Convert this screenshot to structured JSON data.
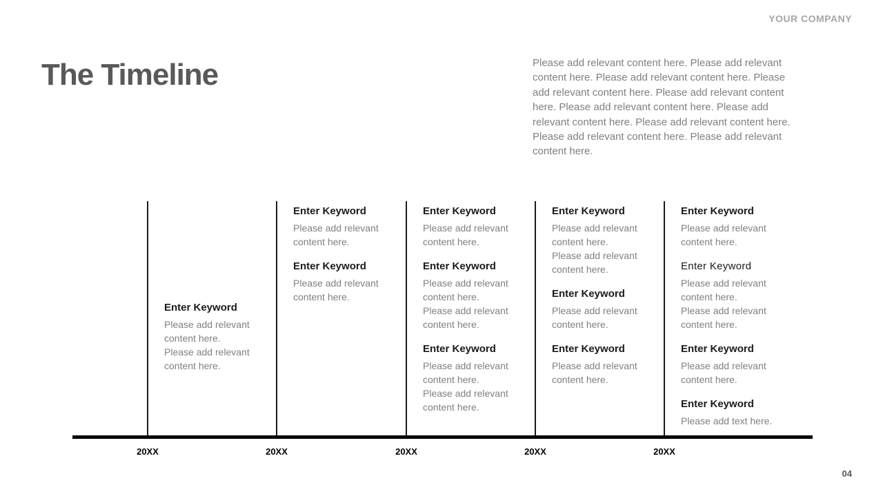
{
  "header": {
    "company": "YOUR COMPANY",
    "title": "The Timeline",
    "intro": "Please add relevant content here. Please add relevant content here. Please add relevant content here. Please add relevant content here. Please add relevant content here. Please add relevant content here. Please add relevant content here. Please add relevant content here. Please add relevant content here. Please add relevant content here."
  },
  "timeline": {
    "columns": [
      {
        "year": "20XX",
        "entries": [
          {
            "title": "Enter Keyword",
            "lines": [
              "Please add relevant content here.",
              "Please add relevant content here."
            ]
          }
        ]
      },
      {
        "year": "20XX",
        "entries": [
          {
            "title": "Enter Keyword",
            "lines": [
              "Please add relevant content here."
            ]
          },
          {
            "title": "Enter Keyword",
            "lines": [
              "Please add relevant content here."
            ]
          }
        ]
      },
      {
        "year": "20XX",
        "entries": [
          {
            "title": "Enter Keyword",
            "lines": [
              "Please add relevant content here."
            ]
          },
          {
            "title": "Enter Keyword",
            "lines": [
              "Please add relevant content here.",
              "Please add relevant content here."
            ]
          },
          {
            "title": "Enter Keyword",
            "lines": [
              "Please add relevant content here.",
              "Please add relevant content here."
            ]
          }
        ]
      },
      {
        "year": "20XX",
        "entries": [
          {
            "title": "Enter Keyword",
            "lines": [
              "Please add relevant content here.",
              "Please add relevant content here."
            ]
          },
          {
            "title": "Enter Keyword",
            "lines": [
              "Please add relevant content here."
            ]
          },
          {
            "title": "Enter Keyword",
            "lines": [
              "Please add relevant content here."
            ]
          }
        ]
      },
      {
        "year": "20XX",
        "entries": [
          {
            "title": "Enter Keyword",
            "lines": [
              "Please add relevant content here."
            ]
          },
          {
            "title": "Enter Keyword",
            "lines": [
              "Please add relevant content here.",
              "Please add relevant content here."
            ]
          },
          {
            "title": "Enter Keyword",
            "lines": [
              "Please add relevant content here."
            ]
          },
          {
            "title": "Enter Keyword",
            "lines": [
              "Please add text here."
            ]
          }
        ]
      }
    ]
  },
  "footer": {
    "page_number": "04"
  },
  "colors": {
    "title_gray": "#595959",
    "body_gray": "#808080",
    "heading_black": "#1a1a1a",
    "company_gray": "#a6a6a6",
    "axis_black": "#000000"
  }
}
